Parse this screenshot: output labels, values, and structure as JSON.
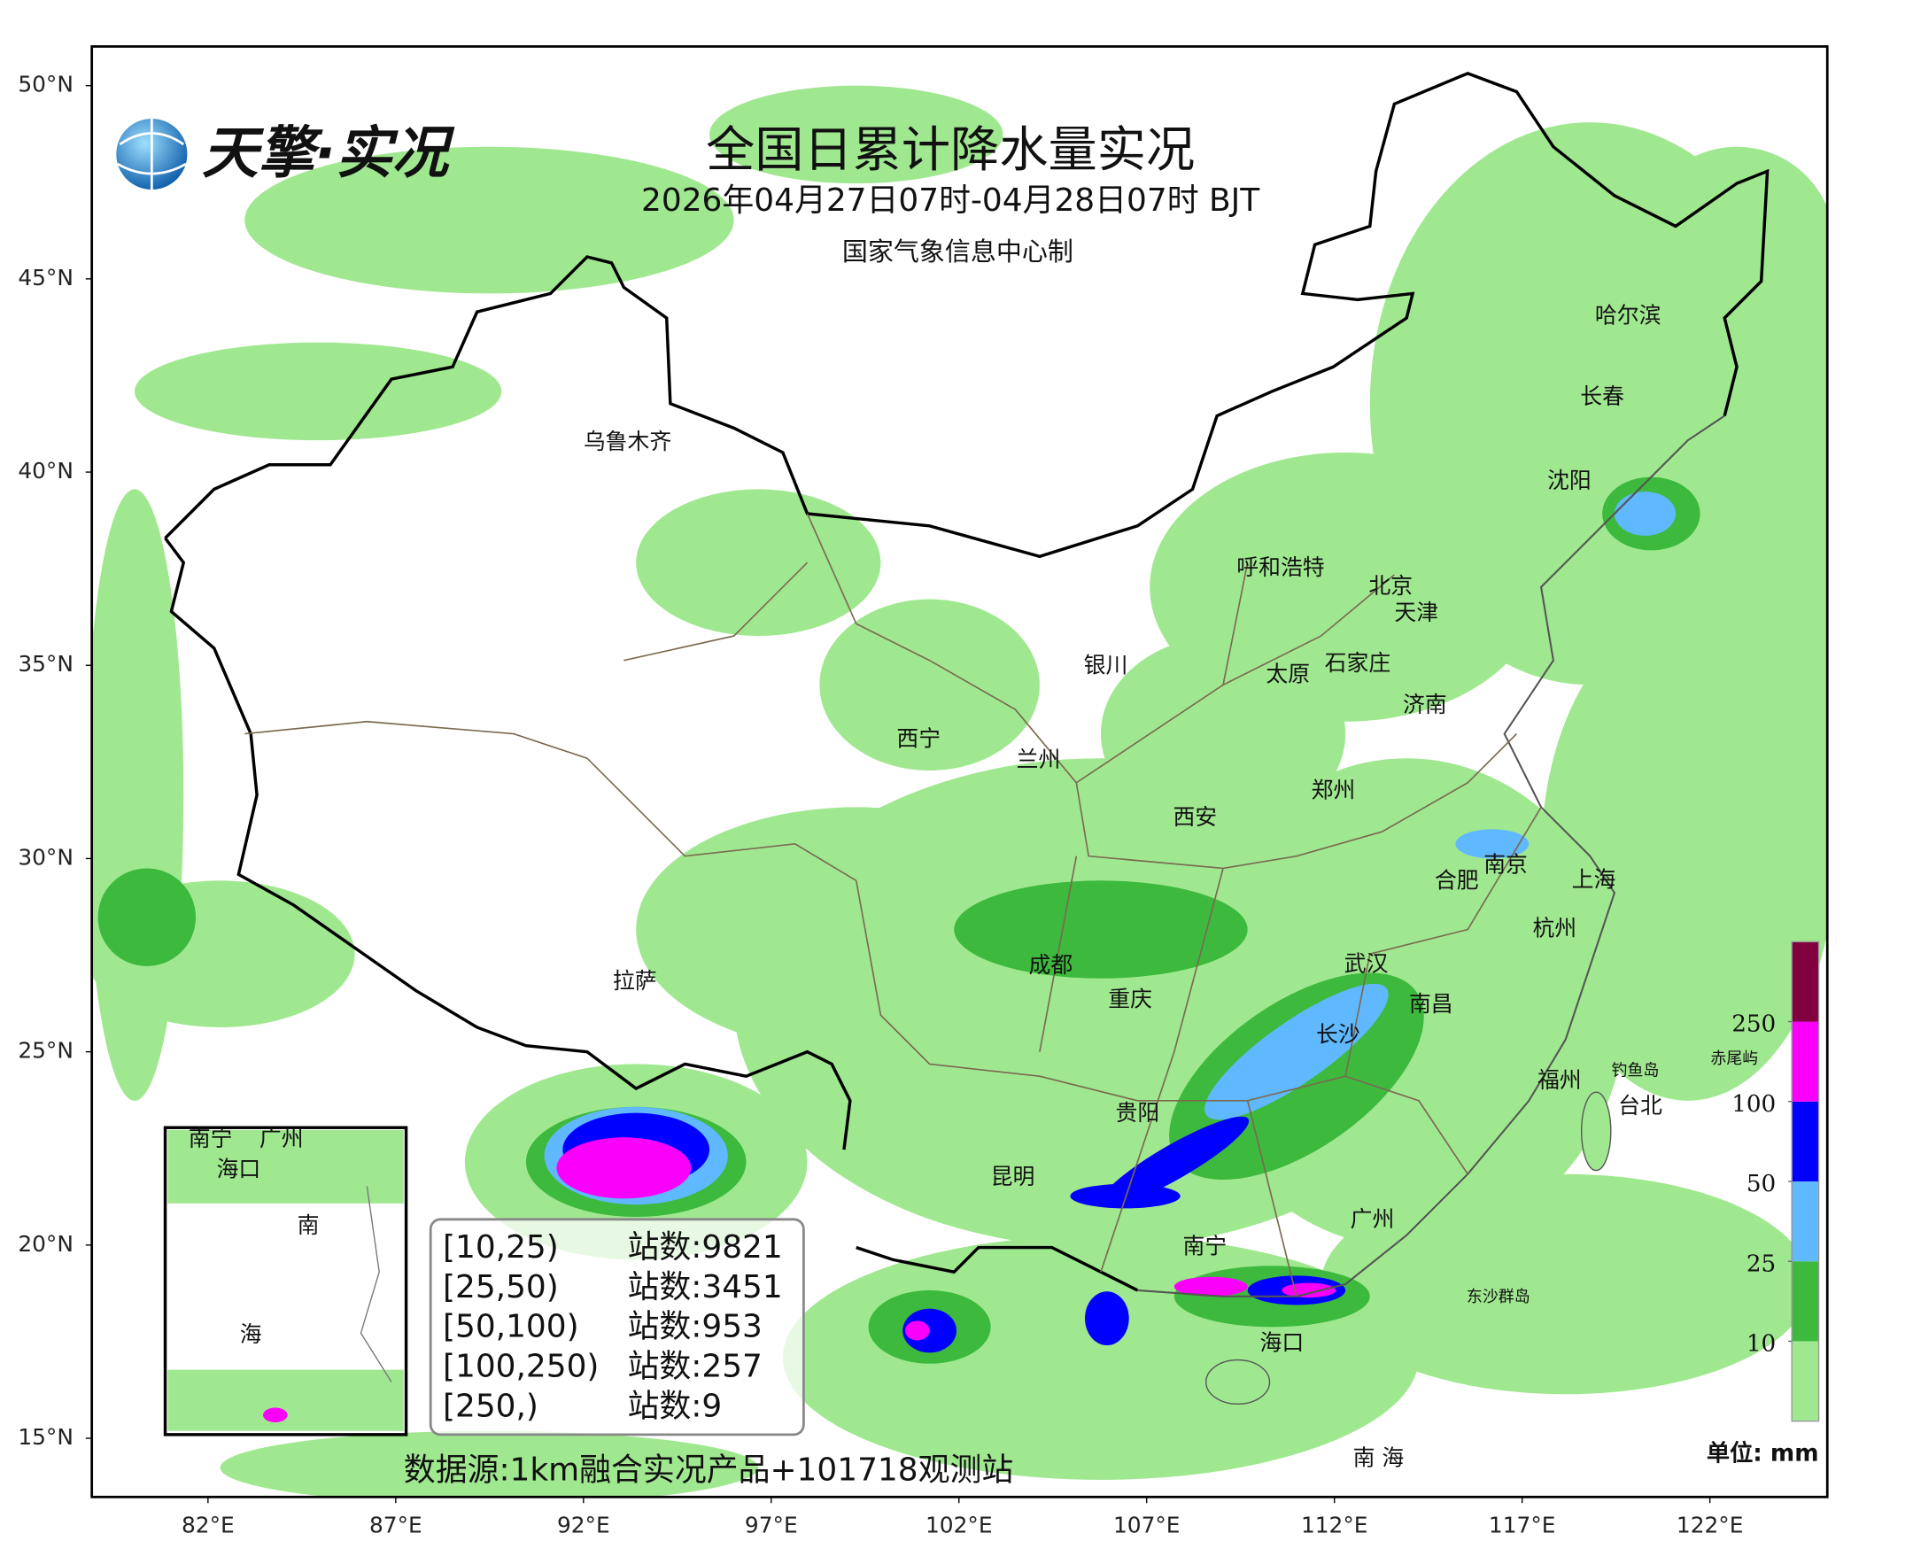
{
  "logo": {
    "text": "天擎·实况"
  },
  "header": {
    "title": "全国日累计降水量实况",
    "subtitle": "2026年04月27日07时-04月28日07时 BJT",
    "producer": "国家气象信息中心制"
  },
  "axes": {
    "lat_ticks": [
      {
        "value": 50,
        "label": "50°N"
      },
      {
        "value": 45,
        "label": "45°N"
      },
      {
        "value": 40,
        "label": "40°N"
      },
      {
        "value": 35,
        "label": "35°N"
      },
      {
        "value": 30,
        "label": "30°N"
      },
      {
        "value": 25,
        "label": "25°N"
      },
      {
        "value": 20,
        "label": "20°N"
      },
      {
        "value": 15,
        "label": "15°N"
      }
    ],
    "lon_ticks": [
      {
        "value": 82,
        "label": "82°E"
      },
      {
        "value": 87,
        "label": "87°E"
      },
      {
        "value": 92,
        "label": "92°E"
      },
      {
        "value": 97,
        "label": "97°E"
      },
      {
        "value": 102,
        "label": "102°E"
      },
      {
        "value": 107,
        "label": "107°E"
      },
      {
        "value": 112,
        "label": "112°E"
      },
      {
        "value": 117,
        "label": "117°E"
      },
      {
        "value": 122,
        "label": "122°E"
      }
    ]
  },
  "cities": [
    "乌鲁木齐",
    "哈尔滨",
    "长春",
    "沈阳",
    "呼和浩特",
    "北京",
    "天津",
    "银川",
    "太原",
    "石家庄",
    "济南",
    "西宁",
    "兰州",
    "郑州",
    "西安",
    "南京",
    "合肥",
    "上海",
    "杭州",
    "拉萨",
    "成都",
    "重庆",
    "武汉",
    "南昌",
    "长沙",
    "福州",
    "钓鱼岛",
    "赤尾屿",
    "台北",
    "贵阳",
    "昆明",
    "广州",
    "南宁",
    "东沙群岛",
    "海口",
    "南 海"
  ],
  "inset": {
    "labels": [
      "南宁",
      "广州",
      "海口",
      "南",
      "海"
    ]
  },
  "station_counts": {
    "rows": [
      {
        "range": "[10,25)",
        "count": "站数:9821"
      },
      {
        "range": "[25,50)",
        "count": "站数:3451"
      },
      {
        "range": "[50,100)",
        "count": "站数:953"
      },
      {
        "range": "[100,250)",
        "count": "站数:257"
      },
      {
        "range": "[250,)",
        "count": "站数:9"
      }
    ]
  },
  "legend": {
    "ticks": [
      10,
      25,
      50,
      100,
      250
    ],
    "colors": [
      "#a0e890",
      "#3dba3d",
      "#60b8ff",
      "#0000fe",
      "#fa00fa",
      "#800040"
    ],
    "unit": "单位: mm"
  },
  "source": "数据源:1km融合实况产品+101718观测站"
}
